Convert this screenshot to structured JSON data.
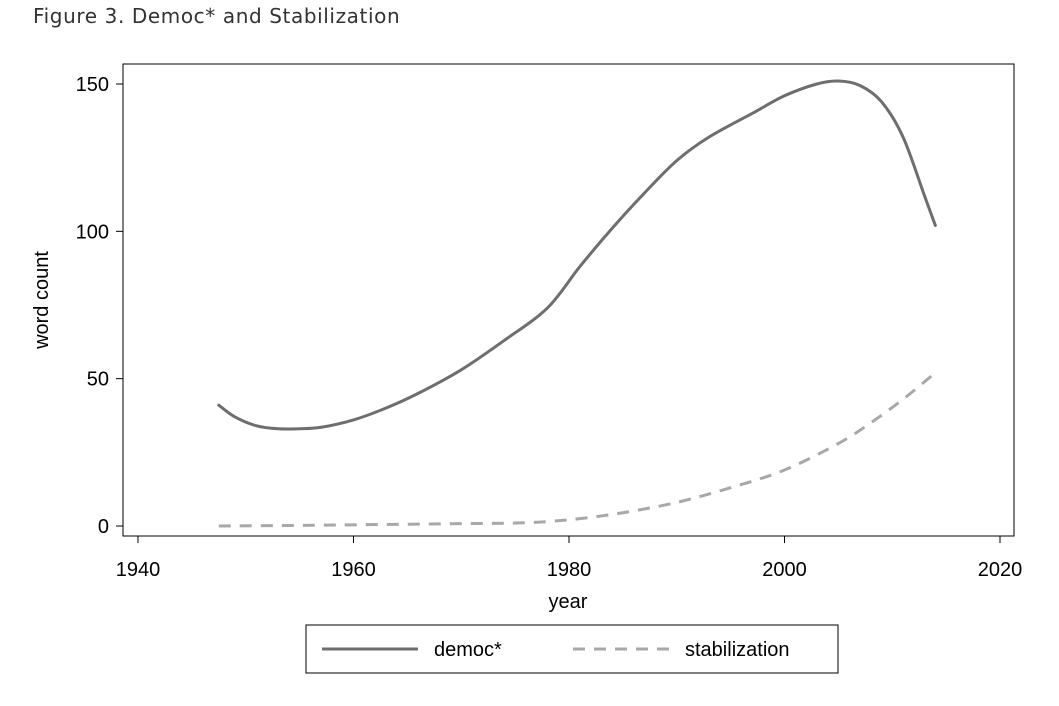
{
  "figure_title": "Figure 3.  Democ* and Stabilization",
  "chart_data": {
    "type": "line",
    "title": "Figure 3.  Democ* and Stabilization",
    "xlabel": "year",
    "ylabel": "word count",
    "xlim": [
      1940,
      2020
    ],
    "ylim": [
      0,
      150
    ],
    "x_ticks": [
      "1940",
      "1960",
      "1980",
      "2000",
      "2020"
    ],
    "y_ticks": [
      "0",
      "50",
      "100",
      "150"
    ],
    "grid": false,
    "legend_position": "bottom",
    "series": [
      {
        "name": "democ*",
        "style": "solid",
        "color": "#6e6e6e",
        "x": [
          1947.5,
          1949,
          1951,
          1953,
          1955,
          1957,
          1960,
          1963,
          1966,
          1970,
          1974,
          1978,
          1981,
          1984,
          1987,
          1990,
          1993,
          1997,
          2000,
          2003,
          2005,
          2007,
          2009,
          2011,
          2013,
          2014
        ],
        "y": [
          41,
          37,
          34,
          33,
          33,
          33.5,
          36,
          40,
          45,
          53,
          63,
          74,
          88,
          101,
          113,
          124,
          132,
          140,
          146,
          150,
          151,
          149.5,
          144,
          132,
          112,
          102
        ]
      },
      {
        "name": "stabilization",
        "style": "dashed",
        "color": "#a8a8a8",
        "x": [
          1947.5,
          1955,
          1960,
          1965,
          1970,
          1975,
          1978,
          1981,
          1985,
          1990,
          1995,
          2000,
          2005,
          2008,
          2011,
          2014
        ],
        "y": [
          0,
          0.2,
          0.4,
          0.6,
          0.8,
          1.0,
          1.5,
          2.5,
          4.5,
          8,
          13,
          19,
          28,
          35,
          43,
          52
        ]
      }
    ]
  }
}
